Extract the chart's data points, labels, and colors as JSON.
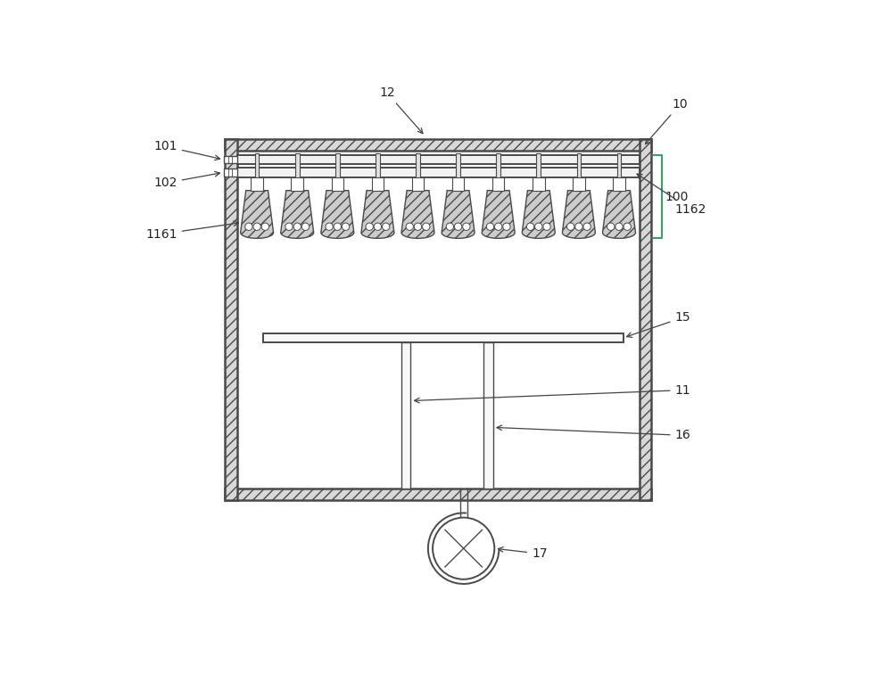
{
  "bg_color": "#ffffff",
  "line_color": "#4a4a4a",
  "fig_width": 10.0,
  "fig_height": 7.65,
  "n_nozzles": 10,
  "wall_hatch": "///",
  "nozzle_hatch": "///",
  "ox": 0.1,
  "oy": 0.14,
  "ow": 0.8,
  "oh": 0.68,
  "wall_t": 0.022
}
